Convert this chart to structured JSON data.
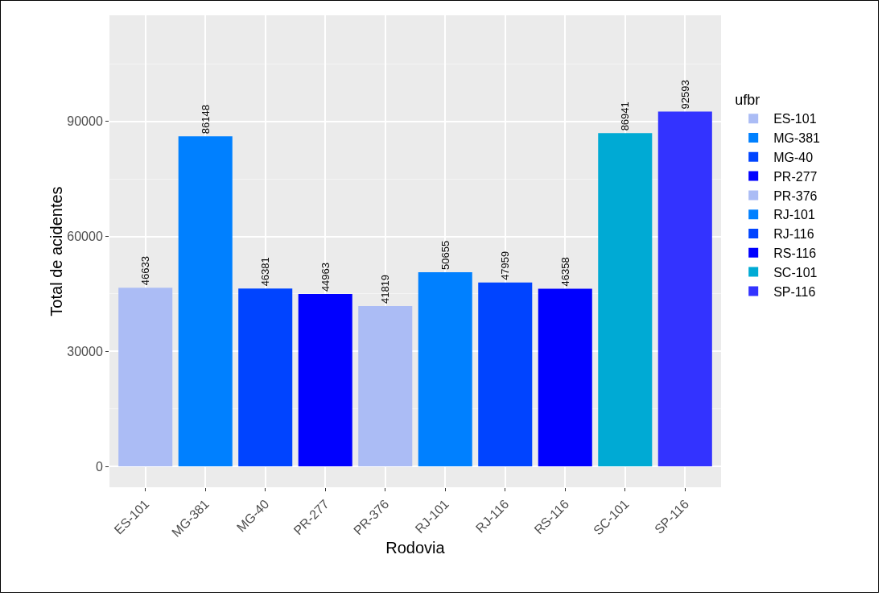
{
  "chart_data": {
    "type": "bar",
    "xlabel": "Rodovia",
    "ylabel": "Total de acidentes",
    "legend_title": "ufbr",
    "categories": [
      "ES-101",
      "MG-381",
      "MG-40",
      "PR-277",
      "PR-376",
      "RJ-101",
      "RJ-116",
      "RS-116",
      "SC-101",
      "SP-116"
    ],
    "series": [
      {
        "name": "ES-101",
        "color": "#abbcf5",
        "values": [
          46633,
          null,
          null,
          null,
          null,
          null,
          null,
          null,
          null,
          null
        ]
      },
      {
        "name": "MG-381",
        "color": "#0080ff",
        "values": [
          null,
          86148,
          null,
          null,
          null,
          null,
          null,
          null,
          null,
          null
        ]
      },
      {
        "name": "MG-40",
        "color": "#0044ff",
        "values": [
          null,
          null,
          46381,
          null,
          null,
          null,
          null,
          null,
          null,
          null
        ]
      },
      {
        "name": "PR-277",
        "color": "#0000ff",
        "values": [
          null,
          null,
          null,
          44963,
          null,
          null,
          null,
          null,
          null,
          null
        ]
      },
      {
        "name": "PR-376",
        "color": "#abbcf5",
        "values": [
          null,
          null,
          null,
          null,
          41819,
          null,
          null,
          null,
          null,
          null
        ]
      },
      {
        "name": "RJ-101",
        "color": "#0080ff",
        "values": [
          null,
          null,
          null,
          null,
          null,
          50655,
          null,
          null,
          null,
          null
        ]
      },
      {
        "name": "RJ-116",
        "color": "#0044ff",
        "values": [
          null,
          null,
          null,
          null,
          null,
          null,
          47959,
          null,
          null,
          null
        ]
      },
      {
        "name": "RS-116",
        "color": "#0000ff",
        "values": [
          null,
          null,
          null,
          null,
          null,
          null,
          null,
          46358,
          null,
          null
        ]
      },
      {
        "name": "SC-101",
        "color": "#00aad4",
        "values": [
          null,
          null,
          null,
          null,
          null,
          null,
          null,
          null,
          86941,
          null
        ]
      },
      {
        "name": "SP-116",
        "color": "#3333ff",
        "values": [
          null,
          null,
          null,
          null,
          null,
          null,
          null,
          null,
          null,
          92593
        ]
      }
    ],
    "ylim": [
      -5450,
      117700
    ],
    "yticks": [
      0,
      30000,
      60000,
      90000
    ],
    "grid": true,
    "legend": "right",
    "data_labels": true
  }
}
